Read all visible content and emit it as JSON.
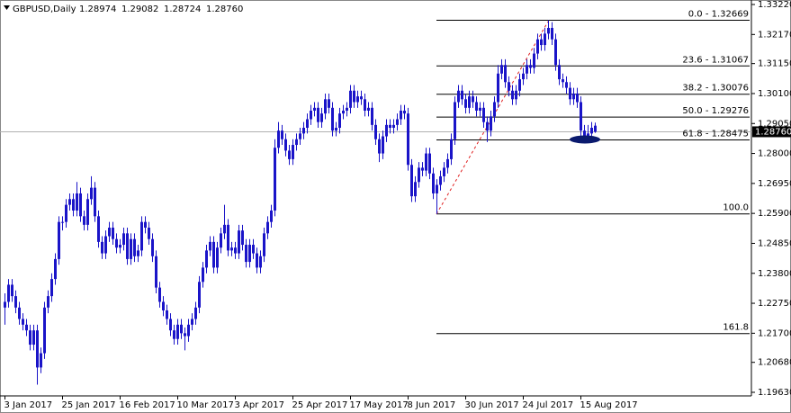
{
  "chart_data": {
    "type": "candlestick",
    "title": "GBPUSD,Daily",
    "header_ohlc": [
      1.28974,
      1.29082,
      1.28724,
      {
        "value": 1.2876,
        "label": "1.28760"
      }
    ],
    "color": "#1a14c8",
    "current_price": {
      "value": 1.2876,
      "label": "1.28760"
    },
    "ylim": [
      1.19504,
      1.33378
    ],
    "yticks": [
      {
        "value": 1.3322,
        "label": "1.33220"
      },
      {
        "value": 1.3217,
        "label": "1.32170"
      },
      {
        "value": 1.3115,
        "label": "1.31150"
      },
      {
        "value": 1.301,
        "label": "1.30100"
      },
      {
        "value": 1.2905,
        "label": "1.29050"
      },
      {
        "value": 1.28,
        "label": "1.28000"
      },
      {
        "value": 1.2695,
        "label": "1.26950"
      },
      {
        "value": 1.259,
        "label": "1.25900"
      },
      {
        "value": 1.2485,
        "label": "1.24850"
      },
      {
        "value": 1.238,
        "label": "1.23800"
      },
      {
        "value": 1.2275,
        "label": "1.22750"
      },
      {
        "value": 1.217,
        "label": "1.21700"
      },
      {
        "value": 1.2068,
        "label": "1.20680"
      },
      {
        "value": 1.1963,
        "label": "1.19630"
      }
    ],
    "xlim": [
      -1.25,
      207.5
    ],
    "xticks": [
      {
        "value": 0,
        "label": "3 Jan 2017"
      },
      {
        "value": 16,
        "label": "25 Jan 2017"
      },
      {
        "value": 32,
        "label": "16 Feb 2017"
      },
      {
        "value": 48,
        "label": "10 Mar 2017"
      },
      {
        "value": 64,
        "label": "3 Apr 2017"
      },
      {
        "value": 80,
        "label": "25 Apr 2017"
      },
      {
        "value": 96,
        "label": "17 May 2017"
      },
      {
        "value": 112,
        "label": "8 Jun 2017"
      },
      {
        "value": 128,
        "label": "30 Jun 2017"
      },
      {
        "value": 144,
        "label": "24 Jul 2017"
      },
      {
        "value": 160,
        "label": "15 Aug 2017"
      }
    ],
    "fib_levels": [
      {
        "value": 1.32669,
        "label": "0.0 - 1.32669"
      },
      {
        "value": 1.31067,
        "label": "23.6 - 1.31067"
      },
      {
        "value": 1.30076,
        "label": "38.2 - 1.30076"
      },
      {
        "value": 1.29276,
        "label": "50.0 - 1.29276"
      },
      {
        "value": 1.28475,
        "label": "61.8 - 1.28475"
      },
      {
        "value": 1.25883,
        "label": "100.0"
      },
      {
        "value": 1.21689,
        "label": "161.8"
      }
    ],
    "candles": [
      [
        1.226,
        1.231,
        1.22,
        1.228
      ],
      [
        1.228,
        1.236,
        1.226,
        1.234
      ],
      [
        1.234,
        1.236,
        1.228,
        1.23
      ],
      [
        1.23,
        1.232,
        1.224,
        1.226
      ],
      [
        1.226,
        1.228,
        1.22,
        1.222
      ],
      [
        1.222,
        1.224,
        1.218,
        1.22
      ],
      [
        1.22,
        1.222,
        1.216,
        1.218
      ],
      [
        1.218,
        1.22,
        1.211,
        1.213
      ],
      [
        1.213,
        1.22,
        1.211,
        1.218
      ],
      [
        1.218,
        1.22,
        1.199,
        1.205
      ],
      [
        1.205,
        1.212,
        1.203,
        1.21
      ],
      [
        1.21,
        1.228,
        1.208,
        1.226
      ],
      [
        1.226,
        1.232,
        1.224,
        1.23
      ],
      [
        1.23,
        1.238,
        1.228,
        1.236
      ],
      [
        1.236,
        1.245,
        1.234,
        1.243
      ],
      [
        1.243,
        1.258,
        1.241,
        1.256
      ],
      [
        1.256,
        1.258,
        1.253,
        1.256
      ],
      [
        1.256,
        1.264,
        1.254,
        1.262
      ],
      [
        1.262,
        1.266,
        1.26,
        1.264
      ],
      [
        1.264,
        1.266,
        1.258,
        1.26
      ],
      [
        1.26,
        1.27,
        1.258,
        1.266
      ],
      [
        1.266,
        1.268,
        1.256,
        1.258
      ],
      [
        1.258,
        1.26,
        1.253,
        1.255
      ],
      [
        1.255,
        1.266,
        1.253,
        1.264
      ],
      [
        1.264,
        1.272,
        1.262,
        1.268
      ],
      [
        1.268,
        1.27,
        1.256,
        1.258
      ],
      [
        1.258,
        1.26,
        1.247,
        1.249
      ],
      [
        1.249,
        1.251,
        1.243,
        1.245
      ],
      [
        1.245,
        1.253,
        1.243,
        1.251
      ],
      [
        1.251,
        1.256,
        1.249,
        1.254
      ],
      [
        1.254,
        1.256,
        1.248,
        1.25
      ],
      [
        1.25,
        1.252,
        1.245,
        1.247
      ],
      [
        1.247,
        1.25,
        1.245,
        1.248
      ],
      [
        1.248,
        1.254,
        1.246,
        1.252
      ],
      [
        1.252,
        1.254,
        1.241,
        1.243
      ],
      [
        1.243,
        1.252,
        1.241,
        1.25
      ],
      [
        1.25,
        1.252,
        1.242,
        1.244
      ],
      [
        1.244,
        1.248,
        1.242,
        1.246
      ],
      [
        1.246,
        1.258,
        1.244,
        1.256
      ],
      [
        1.256,
        1.258,
        1.252,
        1.254
      ],
      [
        1.254,
        1.256,
        1.248,
        1.25
      ],
      [
        1.25,
        1.252,
        1.242,
        1.244
      ],
      [
        1.244,
        1.246,
        1.231,
        1.233
      ],
      [
        1.233,
        1.235,
        1.226,
        1.228
      ],
      [
        1.228,
        1.23,
        1.223,
        1.225
      ],
      [
        1.225,
        1.227,
        1.22,
        1.222
      ],
      [
        1.222,
        1.224,
        1.216,
        1.218
      ],
      [
        1.218,
        1.22,
        1.213,
        1.215
      ],
      [
        1.215,
        1.222,
        1.213,
        1.22
      ],
      [
        1.22,
        1.222,
        1.215,
        1.217
      ],
      [
        1.217,
        1.219,
        1.211,
        1.216
      ],
      [
        1.216,
        1.222,
        1.214,
        1.22
      ],
      [
        1.22,
        1.224,
        1.218,
        1.222
      ],
      [
        1.222,
        1.228,
        1.22,
        1.226
      ],
      [
        1.226,
        1.237,
        1.224,
        1.235
      ],
      [
        1.235,
        1.242,
        1.233,
        1.24
      ],
      [
        1.24,
        1.248,
        1.238,
        1.246
      ],
      [
        1.246,
        1.251,
        1.244,
        1.249
      ],
      [
        1.249,
        1.251,
        1.238,
        1.24
      ],
      [
        1.24,
        1.249,
        1.238,
        1.247
      ],
      [
        1.247,
        1.254,
        1.245,
        1.252
      ],
      [
        1.252,
        1.262,
        1.25,
        1.255
      ],
      [
        1.255,
        1.257,
        1.244,
        1.246
      ],
      [
        1.246,
        1.249,
        1.244,
        1.247
      ],
      [
        1.247,
        1.249,
        1.243,
        1.245
      ],
      [
        1.245,
        1.255,
        1.243,
        1.253
      ],
      [
        1.253,
        1.255,
        1.246,
        1.248
      ],
      [
        1.248,
        1.25,
        1.24,
        1.242
      ],
      [
        1.242,
        1.25,
        1.24,
        1.248
      ],
      [
        1.248,
        1.25,
        1.243,
        1.245
      ],
      [
        1.245,
        1.247,
        1.238,
        1.24
      ],
      [
        1.24,
        1.246,
        1.238,
        1.244
      ],
      [
        1.244,
        1.254,
        1.242,
        1.252
      ],
      [
        1.252,
        1.258,
        1.25,
        1.256
      ],
      [
        1.256,
        1.262,
        1.254,
        1.26
      ],
      [
        1.26,
        1.285,
        1.258,
        1.282
      ],
      [
        1.282,
        1.291,
        1.28,
        1.288
      ],
      [
        1.288,
        1.29,
        1.283,
        1.285
      ],
      [
        1.285,
        1.287,
        1.279,
        1.281
      ],
      [
        1.281,
        1.283,
        1.276,
        1.278
      ],
      [
        1.278,
        1.285,
        1.276,
        1.283
      ],
      [
        1.283,
        1.287,
        1.281,
        1.285
      ],
      [
        1.285,
        1.289,
        1.283,
        1.287
      ],
      [
        1.287,
        1.291,
        1.285,
        1.289
      ],
      [
        1.289,
        1.294,
        1.287,
        1.292
      ],
      [
        1.292,
        1.297,
        1.29,
        1.295
      ],
      [
        1.295,
        1.298,
        1.293,
        1.296
      ],
      [
        1.296,
        1.298,
        1.289,
        1.291
      ],
      [
        1.291,
        1.296,
        1.289,
        1.294
      ],
      [
        1.294,
        1.301,
        1.292,
        1.299
      ],
      [
        1.299,
        1.301,
        1.294,
        1.296
      ],
      [
        1.296,
        1.298,
        1.286,
        1.288
      ],
      [
        1.288,
        1.291,
        1.286,
        1.289
      ],
      [
        1.289,
        1.296,
        1.287,
        1.294
      ],
      [
        1.294,
        1.297,
        1.292,
        1.295
      ],
      [
        1.295,
        1.298,
        1.293,
        1.296
      ],
      [
        1.296,
        1.304,
        1.294,
        1.302
      ],
      [
        1.302,
        1.304,
        1.296,
        1.298
      ],
      [
        1.298,
        1.302,
        1.296,
        1.3
      ],
      [
        1.3,
        1.302,
        1.297,
        1.299
      ],
      [
        1.299,
        1.301,
        1.293,
        1.295
      ],
      [
        1.295,
        1.298,
        1.293,
        1.296
      ],
      [
        1.296,
        1.298,
        1.288,
        1.29
      ],
      [
        1.29,
        1.292,
        1.283,
        1.285
      ],
      [
        1.285,
        1.287,
        1.277,
        1.28
      ],
      [
        1.28,
        1.288,
        1.278,
        1.286
      ],
      [
        1.286,
        1.292,
        1.284,
        1.29
      ],
      [
        1.29,
        1.292,
        1.287,
        1.289
      ],
      [
        1.289,
        1.292,
        1.287,
        1.29
      ],
      [
        1.29,
        1.294,
        1.288,
        1.292
      ],
      [
        1.292,
        1.297,
        1.29,
        1.295
      ],
      [
        1.295,
        1.297,
        1.292,
        1.294
      ],
      [
        1.294,
        1.296,
        1.274,
        1.276
      ],
      [
        1.276,
        1.278,
        1.263,
        1.265
      ],
      [
        1.265,
        1.272,
        1.263,
        1.27
      ],
      [
        1.27,
        1.277,
        1.268,
        1.275
      ],
      [
        1.275,
        1.277,
        1.272,
        1.274
      ],
      [
        1.274,
        1.282,
        1.272,
        1.28
      ],
      [
        1.28,
        1.282,
        1.271,
        1.273
      ],
      [
        1.273,
        1.275,
        1.264,
        1.266
      ],
      [
        1.266,
        1.271,
        1.25883,
        1.269
      ],
      [
        1.269,
        1.274,
        1.267,
        1.272
      ],
      [
        1.272,
        1.277,
        1.27,
        1.275
      ],
      [
        1.275,
        1.28,
        1.273,
        1.278
      ],
      [
        1.278,
        1.287,
        1.276,
        1.285
      ],
      [
        1.285,
        1.3,
        1.283,
        1.298
      ],
      [
        1.298,
        1.304,
        1.296,
        1.302
      ],
      [
        1.302,
        1.304,
        1.297,
        1.299
      ],
      [
        1.299,
        1.301,
        1.294,
        1.296
      ],
      [
        1.296,
        1.302,
        1.294,
        1.3
      ],
      [
        1.3,
        1.302,
        1.296,
        1.298
      ],
      [
        1.298,
        1.3,
        1.293,
        1.295
      ],
      [
        1.295,
        1.298,
        1.293,
        1.296
      ],
      [
        1.296,
        1.298,
        1.289,
        1.291
      ],
      [
        1.291,
        1.293,
        1.284,
        1.288
      ],
      [
        1.288,
        1.295,
        1.286,
        1.293
      ],
      [
        1.293,
        1.3,
        1.291,
        1.298
      ],
      [
        1.298,
        1.311,
        1.296,
        1.308
      ],
      [
        1.308,
        1.313,
        1.306,
        1.311
      ],
      [
        1.311,
        1.313,
        1.303,
        1.305
      ],
      [
        1.305,
        1.307,
        1.3,
        1.302
      ],
      [
        1.302,
        1.304,
        1.297,
        1.299
      ],
      [
        1.299,
        1.304,
        1.297,
        1.302
      ],
      [
        1.302,
        1.308,
        1.3,
        1.306
      ],
      [
        1.306,
        1.31,
        1.304,
        1.308
      ],
      [
        1.308,
        1.313,
        1.306,
        1.311
      ],
      [
        1.311,
        1.313,
        1.308,
        1.31
      ],
      [
        1.31,
        1.317,
        1.308,
        1.315
      ],
      [
        1.315,
        1.322,
        1.313,
        1.32
      ],
      [
        1.32,
        1.322,
        1.316,
        1.318
      ],
      [
        1.318,
        1.324,
        1.316,
        1.322
      ],
      [
        1.322,
        1.32669,
        1.32,
        1.324
      ],
      [
        1.324,
        1.326,
        1.318,
        1.32
      ],
      [
        1.32,
        1.322,
        1.309,
        1.311
      ],
      [
        1.311,
        1.313,
        1.304,
        1.306
      ],
      [
        1.306,
        1.308,
        1.303,
        1.305
      ],
      [
        1.305,
        1.307,
        1.301,
        1.303
      ],
      [
        1.303,
        1.305,
        1.297,
        1.299
      ],
      [
        1.299,
        1.303,
        1.297,
        1.301
      ],
      [
        1.301,
        1.303,
        1.296,
        1.298
      ],
      [
        1.298,
        1.3,
        1.286,
        1.288
      ],
      [
        1.288,
        1.29,
        1.284,
        1.286
      ],
      [
        1.286,
        1.29,
        1.284,
        1.287
      ],
      [
        1.287,
        1.291,
        1.285,
        1.289
      ],
      [
        1.28974,
        1.29082,
        1.28724,
        1.2876
      ]
    ]
  }
}
